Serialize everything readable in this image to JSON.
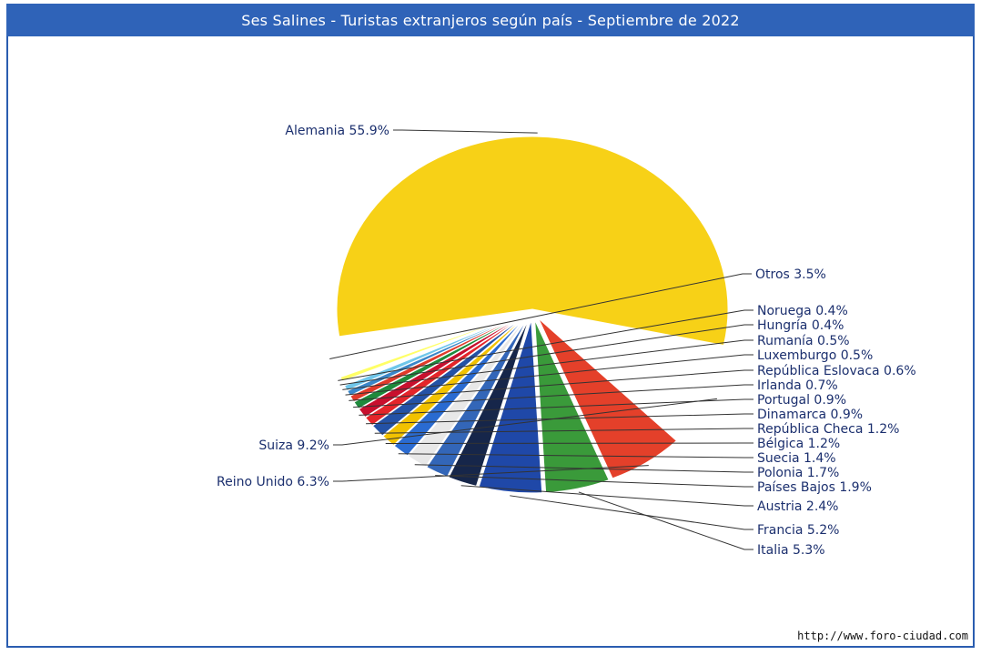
{
  "page": {
    "title": "Ses Salines - Turistas extranjeros según país - Septiembre de 2022",
    "credit": "http://www.foro-ciudad.com"
  },
  "chart_data": {
    "type": "pie",
    "title": "Ses Salines - Turistas extranjeros según país - Septiembre de 2022",
    "label_color": "#1b2f6e",
    "slices": [
      {
        "label": "Alemania",
        "value": 55.9,
        "display": "Alemania 55.9%",
        "color": "#f7d117"
      },
      {
        "label": "Otros",
        "value": 3.5,
        "display": "Otros 3.5%",
        "color": "#ffffff"
      },
      {
        "label": "Noruega",
        "value": 0.4,
        "display": "Noruega 0.4%",
        "color": "#ffff66"
      },
      {
        "label": "Hungría",
        "value": 0.4,
        "display": "Hungría 0.4%",
        "color": "#ffffff"
      },
      {
        "label": "Rumanía",
        "value": 0.5,
        "display": "Rumanía 0.5%",
        "color": "#6fc6ea"
      },
      {
        "label": "Luxemburgo",
        "value": 0.5,
        "display": "Luxemburgo 0.5%",
        "color": "#3a86c8"
      },
      {
        "label": "República Eslovaca",
        "value": 0.6,
        "display": "República Eslovaca 0.6%",
        "color": "#e03a2a"
      },
      {
        "label": "Irlanda",
        "value": 0.7,
        "display": "Irlanda 0.7%",
        "color": "#1e8a3c"
      },
      {
        "label": "Portugal",
        "value": 0.9,
        "display": "Portugal 0.9%",
        "color": "#c8102e"
      },
      {
        "label": "Dinamarca",
        "value": 0.9,
        "display": "Dinamarca 0.9%",
        "color": "#e4252a"
      },
      {
        "label": "República Checa",
        "value": 1.2,
        "display": "República Checa 1.2%",
        "color": "#2452a6"
      },
      {
        "label": "Bélgica",
        "value": 1.2,
        "display": "Bélgica 1.2%",
        "color": "#f2c200"
      },
      {
        "label": "Suecia",
        "value": 1.4,
        "display": "Suecia 1.4%",
        "color": "#2a6bd1"
      },
      {
        "label": "Polonia",
        "value": 1.7,
        "display": "Polonia 1.7%",
        "color": "#e8e8e8"
      },
      {
        "label": "Países Bajos",
        "value": 1.9,
        "display": "Países Bajos 1.9%",
        "color": "#3366b8"
      },
      {
        "label": "Austria",
        "value": 2.4,
        "display": "Austria 2.4%",
        "color": "#16264a"
      },
      {
        "label": "Francia",
        "value": 5.2,
        "display": "Francia 5.2%",
        "color": "#1f48a8"
      },
      {
        "label": "Italia",
        "value": 5.3,
        "display": "Italia 5.3%",
        "color": "#3a9a3a"
      },
      {
        "label": "Reino Unido",
        "value": 6.3,
        "display": "Reino Unido 6.3%",
        "color": "#e4402a"
      },
      {
        "label": "Suiza",
        "value": 9.2,
        "display": "Suiza 9.2%",
        "color": "#ffffff"
      }
    ]
  }
}
